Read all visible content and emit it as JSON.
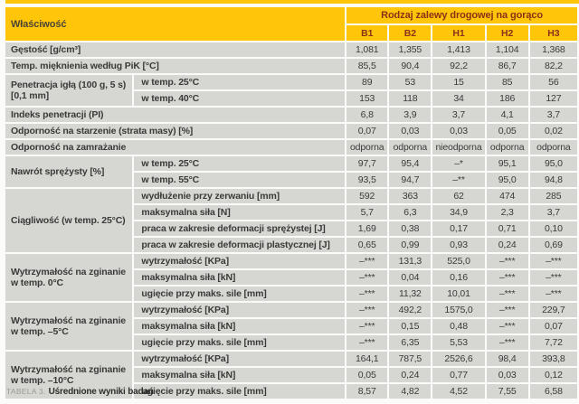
{
  "header": {
    "property_label": "Właściwość",
    "group_label": "Rodzaj zalewy drogowej na gorąco",
    "columns": [
      "B1",
      "B2",
      "H1",
      "H2",
      "H3"
    ]
  },
  "rows": [
    {
      "full": true,
      "label": "Gęstość [g/cm³]",
      "values": [
        "1,081",
        "1,355",
        "1,413",
        "1,104",
        "1,368"
      ]
    },
    {
      "full": true,
      "label": "Temp. mięknienia według PiK [°C]",
      "values": [
        "85,5",
        "90,4",
        "92,2",
        "86,7",
        "82,2"
      ]
    },
    {
      "group": "Penetracja igłą (100 g, 5 s) [0,1 mm]",
      "span": 2,
      "sub": "w temp. 25°C",
      "values": [
        "89",
        "53",
        "15",
        "85",
        "56"
      ]
    },
    {
      "sub": "w temp. 40°C",
      "values": [
        "153",
        "118",
        "34",
        "186",
        "127"
      ]
    },
    {
      "full": true,
      "label": "Indeks penetracji (PI)",
      "values": [
        "6,8",
        "3,9",
        "3,7",
        "4,1",
        "3,7"
      ]
    },
    {
      "full": true,
      "label": "Odporność na starzenie (strata masy) [%]",
      "values": [
        "0,07",
        "0,03",
        "0,03",
        "0,05",
        "0,02"
      ]
    },
    {
      "full": true,
      "label": "Odporność na zamrażanie",
      "values": [
        "odporna",
        "odporna",
        "nieodporna",
        "odporna",
        "odporna"
      ]
    },
    {
      "group": "Nawrót sprężysty [%]",
      "span": 2,
      "sub": "w temp. 25°C",
      "values": [
        "97,7",
        "95,4",
        "–*",
        "95,1",
        "95,0"
      ]
    },
    {
      "sub": "w temp. 55°C",
      "values": [
        "93,5",
        "94,7",
        "–**",
        "95,0",
        "94,8"
      ]
    },
    {
      "group": "Ciągliwość (w temp. 25°C)",
      "span": 4,
      "sub": "wydłużenie przy zerwaniu [mm]",
      "values": [
        "592",
        "363",
        "62",
        "474",
        "285"
      ]
    },
    {
      "sub": "maksymalna siła [N]",
      "values": [
        "5,7",
        "6,3",
        "34,9",
        "2,3",
        "3,7"
      ]
    },
    {
      "sub": "praca w zakresie deformacji sprężystej [J]",
      "values": [
        "1,69",
        "0,38",
        "0,17",
        "0,71",
        "0,10"
      ]
    },
    {
      "sub": "praca w zakresie deformacji plastycznej [J]",
      "values": [
        "0,65",
        "0,99",
        "0,93",
        "0,24",
        "0,69"
      ]
    },
    {
      "group": "Wytrzymałość na zginanie w temp. 0°C",
      "span": 3,
      "sub": "wytrzymałość [KPa]",
      "values": [
        "–***",
        "131,3",
        "525,0",
        "–***",
        "–***"
      ]
    },
    {
      "sub": "maksymalna siła [kN]",
      "values": [
        "–***",
        "0,04",
        "0,16",
        "–***",
        "–***"
      ]
    },
    {
      "sub": "ugięcie przy maks. sile [mm]",
      "values": [
        "–***",
        "11,32",
        "10,01",
        "–***",
        "–***"
      ]
    },
    {
      "group": "Wytrzymałość na zginanie w temp. –5°C",
      "span": 3,
      "sub": "wytrzymałość [KPa]",
      "values": [
        "–***",
        "492,2",
        "1575,0",
        "–***",
        "229,7"
      ]
    },
    {
      "sub": "maksymalna siła [kN]",
      "values": [
        "–***",
        "0,15",
        "0,48",
        "–***",
        "0,07"
      ]
    },
    {
      "sub": "ugięcie przy maks. sile [mm]",
      "values": [
        "–***",
        "6,35",
        "5,53",
        "–***",
        "7,72"
      ]
    },
    {
      "group": "Wytrzymałość na zginanie w temp. –10°C",
      "span": 3,
      "sub": "wytrzymałość [KPa]",
      "values": [
        "164,1",
        "787,5",
        "2526,6",
        "98,4",
        "393,8"
      ]
    },
    {
      "sub": "maksymalna siła [kN]",
      "values": [
        "0,05",
        "0,24",
        "0,77",
        "0,03",
        "0,12"
      ]
    },
    {
      "sub": "ugięcie przy maks. sile [mm]",
      "values": [
        "8,57",
        "4,82",
        "4,52",
        "7,55",
        "6,58"
      ]
    }
  ],
  "caption": {
    "prefix": "TABELA 3.",
    "title": "Uśrednione wyniki badań"
  },
  "colors": {
    "header_background": "#ffc609",
    "header_group_text": "#8b3118",
    "header_property_text": "#4c4336",
    "cell_background": "#d6d6d3",
    "cell_text": "#3a3a38",
    "separator": "#fbfbf9",
    "caption_prefix_text": "#9a9a96",
    "caption_title_text": "#2d2d2b"
  }
}
